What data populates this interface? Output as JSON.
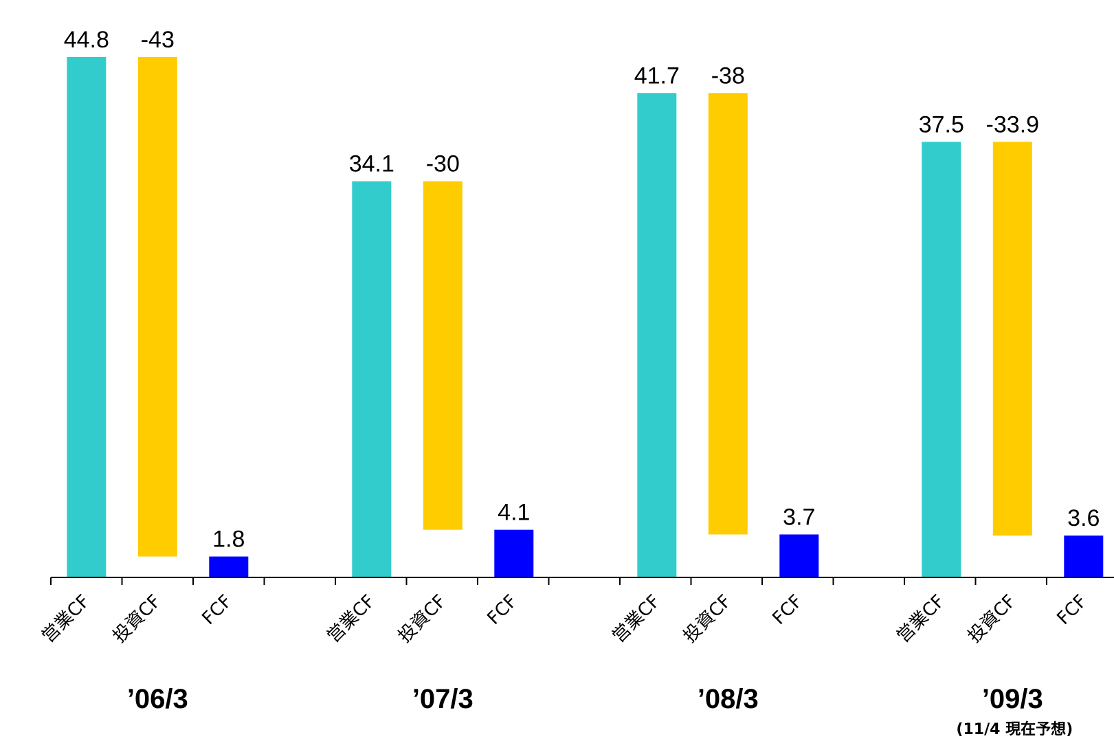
{
  "chart_data": {
    "type": "bar",
    "subtype": "waterfall",
    "title": "",
    "xlabel": "",
    "ylabel": "",
    "legend": "none",
    "grid": false,
    "colors": {
      "営業CF": "#33CCCC",
      "投資CF": "#FFCC00",
      "FCF": "#0000FF"
    },
    "bar_labels": [
      "営業CF",
      "投資CF",
      "FCF"
    ],
    "groups": [
      {
        "label": "’06/3",
        "note": "",
        "values": [
          44.8,
          -43,
          1.8
        ],
        "value_labels": [
          "44.8",
          "-43",
          "1.8"
        ]
      },
      {
        "label": "’07/3",
        "note": "",
        "values": [
          34.1,
          -30,
          4.1
        ],
        "value_labels": [
          "34.1",
          "-30",
          "4.1"
        ]
      },
      {
        "label": "’08/3",
        "note": "",
        "values": [
          41.7,
          -38,
          3.7
        ],
        "value_labels": [
          "41.7",
          "-38",
          "3.7"
        ]
      },
      {
        "label": "’09/3",
        "note": "(11/4 現在予想)",
        "values": [
          37.5,
          -33.9,
          3.6
        ],
        "value_labels": [
          "37.5",
          "-33.9",
          "3.6"
        ]
      }
    ]
  }
}
